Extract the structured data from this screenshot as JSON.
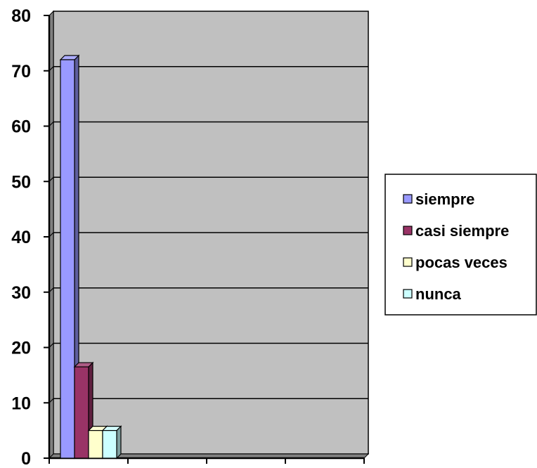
{
  "chart_data": {
    "type": "bar",
    "title": "",
    "xlabel": "",
    "ylabel": "",
    "ylim": [
      0,
      80
    ],
    "yticks": [
      "0",
      "10",
      "20",
      "30",
      "40",
      "50",
      "60",
      "70",
      "80"
    ],
    "grid": true,
    "legend_position": "right",
    "categories": [
      ""
    ],
    "series": [
      {
        "name": "siempre",
        "values": [
          72
        ],
        "color": "#9999ff"
      },
      {
        "name": "casi siempre",
        "values": [
          16.5
        ],
        "color": "#993366"
      },
      {
        "name": "pocas veces",
        "values": [
          5
        ],
        "color": "#ffffcc"
      },
      {
        "name": "nunca",
        "values": [
          5
        ],
        "color": "#ccffff"
      }
    ],
    "plot_background": "#c0c0c0"
  }
}
